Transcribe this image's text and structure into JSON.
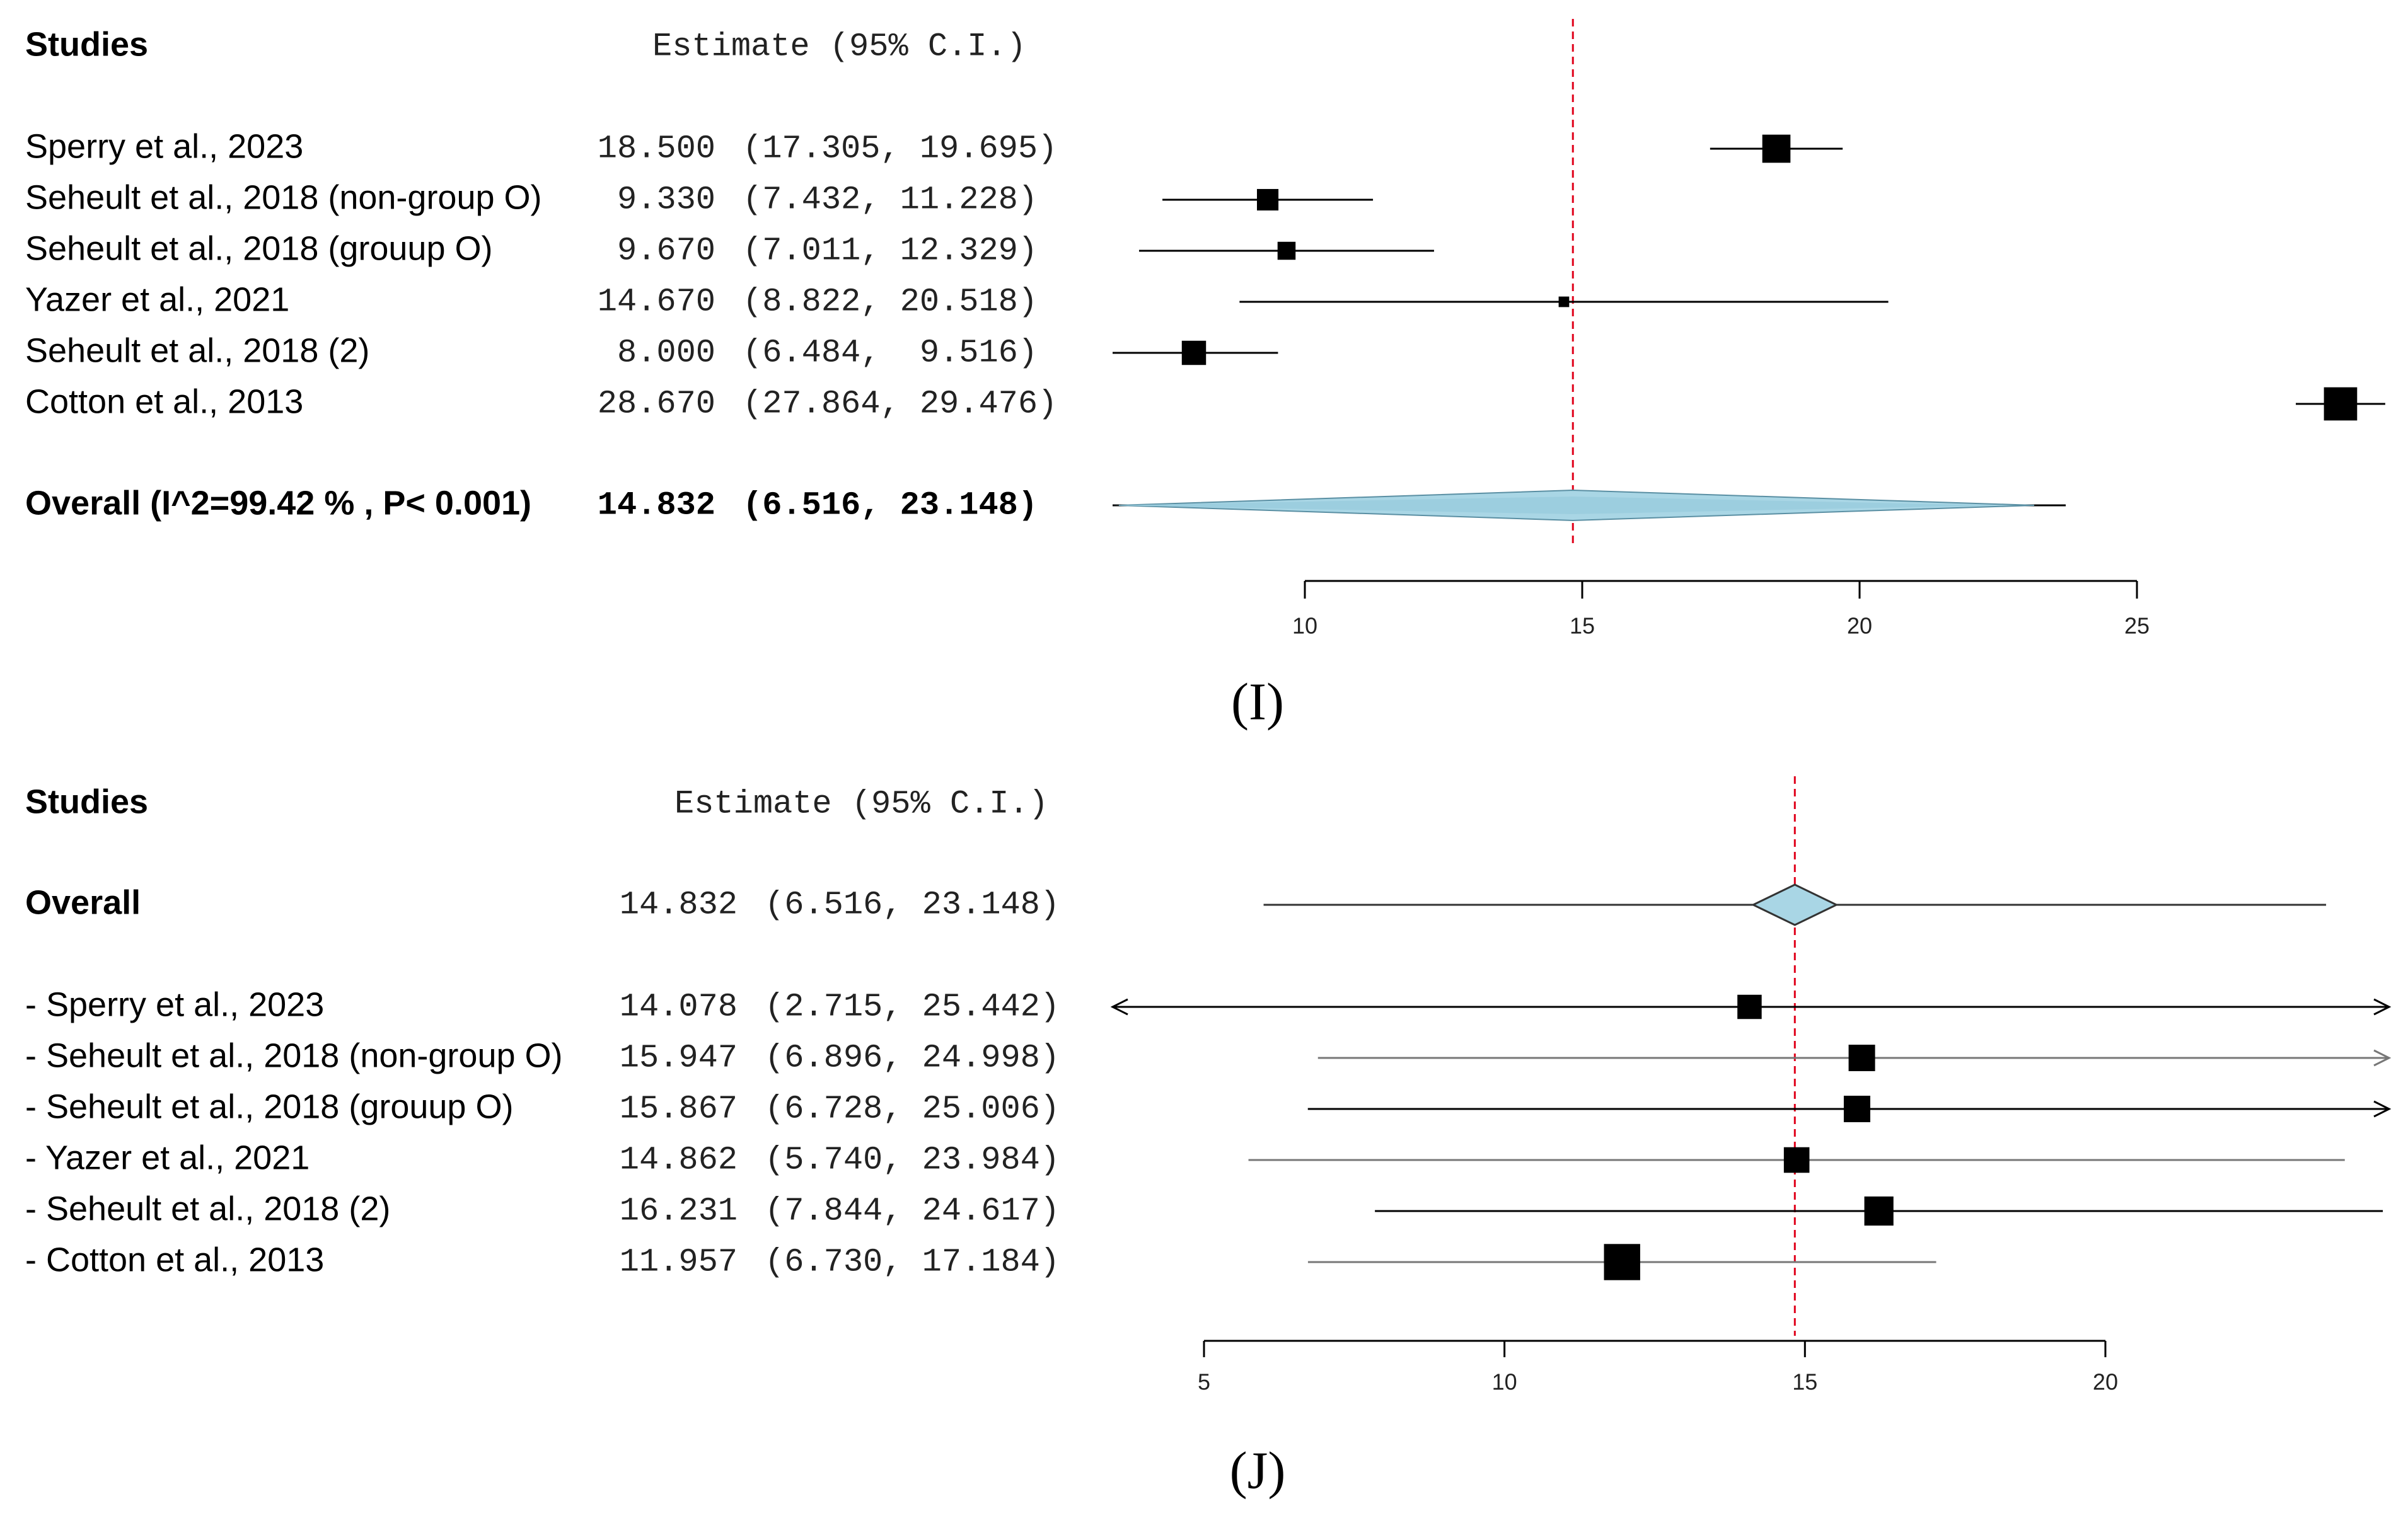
{
  "colors": {
    "reference_line": "#e0001a",
    "diamond_fill": "#a9d6e5",
    "square": "#000000",
    "line": "#000000",
    "gray_line": "#777777"
  },
  "chart_data": [
    {
      "type": "forest",
      "panel_label": "(I)",
      "header_studies": "Studies",
      "header_estimate": "Estimate (95% C.I.)",
      "reference_value": 14.832,
      "x_ticks": [
        10,
        15,
        20,
        25
      ],
      "x_tick_labels": [
        "10",
        "15",
        "20",
        "25"
      ],
      "studies": [
        {
          "label": "Sperry et al., 2023",
          "estimate_text": "18.500",
          "ci_text": "(17.305, 19.695)",
          "estimate": 18.5,
          "lower": 17.305,
          "upper": 19.695,
          "weight": 0.72
        },
        {
          "label": "Seheult et al., 2018 (non-group O)",
          "estimate_text": "9.330",
          "ci_text": "(7.432, 11.228)",
          "estimate": 9.33,
          "lower": 7.432,
          "upper": 11.228,
          "weight": 0.55
        },
        {
          "label": "Seheult et al., 2018 (grouup O)",
          "estimate_text": "9.670",
          "ci_text": "(7.011, 12.329)",
          "estimate": 9.67,
          "lower": 7.011,
          "upper": 12.329,
          "weight": 0.46
        },
        {
          "label": "Yazer et al., 2021",
          "estimate_text": "14.670",
          "ci_text": "(8.822, 20.518)",
          "estimate": 14.67,
          "lower": 8.822,
          "upper": 20.518,
          "weight": 0.27
        },
        {
          "label": "Seheult et al., 2018 (2)",
          "estimate_text": "8.000",
          "ci_text": "(6.484,  9.516)",
          "estimate": 8.0,
          "lower": 6.484,
          "upper": 9.516,
          "weight": 0.62
        },
        {
          "label": "Cotton et al., 2013",
          "estimate_text": "28.670",
          "ci_text": "(27.864, 29.476)",
          "estimate": 28.67,
          "lower": 27.864,
          "upper": 29.476,
          "weight": 0.85
        }
      ],
      "overall": {
        "label": "Overall (I^2=99.42 % , P< 0.001)",
        "estimate_text": "14.832",
        "ci_text": "(6.516, 23.148)",
        "estimate": 14.832,
        "lower": 6.516,
        "upper": 23.148
      }
    },
    {
      "type": "forest-leave-one-out",
      "panel_label": "(J)",
      "header_studies": "Studies",
      "header_estimate": "Estimate (95% C.I.)",
      "reference_value": 14.832,
      "x_ticks": [
        5,
        10,
        15,
        20
      ],
      "x_tick_labels": [
        "5",
        "10",
        "15",
        "20"
      ],
      "overall": {
        "label": "Overall",
        "estimate_text": "14.832",
        "ci_text": "(6.516, 23.148)",
        "estimate": 14.832,
        "lower": 6.516,
        "upper": 23.148
      },
      "studies": [
        {
          "label": "- Sperry et al., 2023",
          "estimate_text": "14.078",
          "ci_text": "(2.715, 25.442)",
          "estimate": 14.078,
          "lower": 2.715,
          "upper": 25.442,
          "weight": 0.55,
          "clip_left": true,
          "clip_right": true,
          "gray": false
        },
        {
          "label": "- Seheult et al., 2018 (non-group O)",
          "estimate_text": "15.947",
          "ci_text": "(6.896, 24.998)",
          "estimate": 15.947,
          "lower": 6.896,
          "upper": 24.998,
          "weight": 0.6,
          "clip_left": false,
          "clip_right": true,
          "gray": true
        },
        {
          "label": "- Seheult et al., 2018 (grouup O)",
          "estimate_text": "15.867",
          "ci_text": "(6.728, 25.006)",
          "estimate": 15.867,
          "lower": 6.728,
          "upper": 25.006,
          "weight": 0.6,
          "clip_left": false,
          "clip_right": true,
          "gray": false
        },
        {
          "label": "- Yazer et al., 2021",
          "estimate_text": "14.862",
          "ci_text": "(5.740, 23.984)",
          "estimate": 14.862,
          "lower": 5.74,
          "upper": 23.984,
          "weight": 0.58,
          "clip_left": false,
          "clip_right": false,
          "gray": true
        },
        {
          "label": "- Seheult et al., 2018 (2)",
          "estimate_text": "16.231",
          "ci_text": "(7.844, 24.617)",
          "estimate": 16.231,
          "lower": 7.844,
          "upper": 24.617,
          "weight": 0.66,
          "clip_left": false,
          "clip_right": false,
          "gray": false
        },
        {
          "label": "- Cotton et al., 2013",
          "estimate_text": "11.957",
          "ci_text": "(6.730, 17.184)",
          "estimate": 11.957,
          "lower": 6.73,
          "upper": 17.184,
          "weight": 0.82,
          "clip_left": false,
          "clip_right": false,
          "gray": true
        }
      ]
    }
  ]
}
